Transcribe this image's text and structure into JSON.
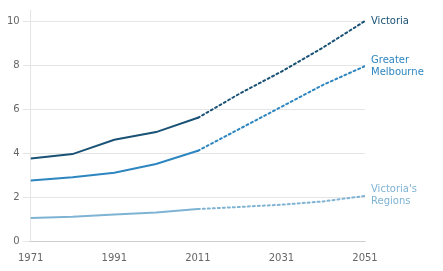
{
  "chart_data": {
    "type": "line",
    "series": [
      {
        "name": "Victoria",
        "color": "#1a5276",
        "line_style": "solid",
        "x": [
          1971,
          1981,
          1991,
          2001,
          2011
        ],
        "values": [
          3.75,
          3.95,
          4.6,
          4.95,
          5.6
        ]
      },
      {
        "name": "Victoria",
        "color": "#1a5276",
        "line_style": "dotted",
        "x": [
          2011,
          2021,
          2031,
          2041,
          2051
        ],
        "values": [
          5.6,
          6.7,
          7.7,
          8.8,
          10.0
        ]
      },
      {
        "name": "Greater\nMelbourne",
        "color": "#2e86c1",
        "line_style": "solid",
        "x": [
          1971,
          1981,
          1991,
          2001,
          2011
        ],
        "values": [
          2.75,
          2.9,
          3.1,
          3.5,
          4.1
        ]
      },
      {
        "name": "Greater\nMelbourne",
        "color": "#2e86c1",
        "line_style": "dotted",
        "x": [
          2011,
          2021,
          2031,
          2041,
          2051
        ],
        "values": [
          4.1,
          5.1,
          6.1,
          7.1,
          7.95
        ]
      },
      {
        "name": "Victoria's\nRegions",
        "color": "#7fb3d3",
        "line_style": "solid",
        "x": [
          1971,
          1981,
          1991,
          2001,
          2011
        ],
        "values": [
          1.05,
          1.1,
          1.2,
          1.3,
          1.45
        ]
      },
      {
        "name": "Victoria's\nRegions",
        "color": "#7fb3d3",
        "line_style": "dotted",
        "x": [
          2011,
          2021,
          2031,
          2041,
          2051
        ],
        "values": [
          1.45,
          1.55,
          1.65,
          1.8,
          2.05
        ]
      }
    ],
    "xlim": [
      1971,
      2051
    ],
    "xticks": [
      1971,
      1991,
      2011,
      2031,
      2051
    ],
    "ylim": [
      0,
      10.5
    ],
    "yticks": [
      0,
      2,
      4,
      6,
      8,
      10
    ],
    "grid": "y"
  }
}
